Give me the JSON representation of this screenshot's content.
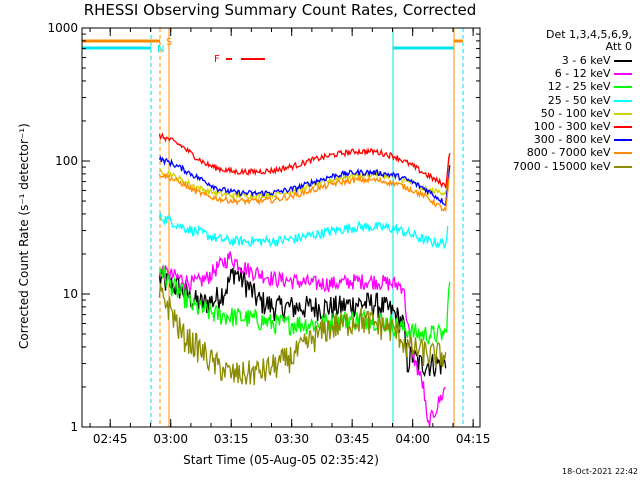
{
  "chart_data": {
    "type": "line",
    "title": "RHESSI Observing Summary Count Rates, Corrected",
    "xlabel": "Start Time (05-Aug-05 02:35:42)",
    "ylabel": "Corrected Count Rate (s⁻¹ detector⁻¹)",
    "yscale": "log",
    "ylim": [
      1,
      1000
    ],
    "xlim_minutes": [
      2.3,
      101
    ],
    "xticks": [
      {
        "m": 9.3,
        "label": "02:45"
      },
      {
        "m": 24.3,
        "label": "03:00"
      },
      {
        "m": 39.3,
        "label": "03:15"
      },
      {
        "m": 54.3,
        "label": "03:30"
      },
      {
        "m": 69.3,
        "label": "03:45"
      },
      {
        "m": 84.3,
        "label": "04:00"
      },
      {
        "m": 99.3,
        "label": "04:15"
      }
    ],
    "yticks": [
      {
        "v": 1,
        "label": "1"
      },
      {
        "v": 10,
        "label": "10"
      },
      {
        "v": 100,
        "label": "100"
      },
      {
        "v": 1000,
        "label": "1000"
      }
    ],
    "legend_header": [
      "Det 1,3,4,5,6,9,",
      "Att 0"
    ],
    "legend_position": "right",
    "timestamp": "18-Oct-2021 22:42",
    "series": [
      {
        "name": "3 - 6 keV",
        "color": "#000000",
        "x": [
          21.5,
          24,
          27,
          30,
          32,
          35,
          38,
          40,
          43,
          46,
          50,
          55,
          60,
          66,
          70,
          75,
          79,
          82,
          83,
          84,
          86,
          88,
          90,
          92.5
        ],
        "y": [
          13,
          12,
          11,
          9,
          8.5,
          9,
          11,
          15,
          12,
          9,
          8,
          8,
          8,
          8,
          8.5,
          8.5,
          7.5,
          6,
          3,
          3.5,
          3,
          3,
          3,
          3
        ]
      },
      {
        "name": "6 - 12 keV",
        "color": "#ff00ff",
        "x": [
          21.5,
          24,
          27,
          30,
          33,
          36,
          39,
          41,
          44,
          47,
          50,
          55,
          60,
          65,
          70,
          75,
          79,
          82,
          83,
          84,
          85,
          86,
          87,
          88,
          92.5
        ],
        "y": [
          15,
          14,
          13,
          12,
          13,
          16,
          19,
          17,
          15,
          14,
          13,
          12.5,
          12,
          12,
          12.5,
          12.5,
          12,
          11.5,
          6,
          4,
          3,
          2.5,
          2,
          1,
          2
        ]
      },
      {
        "name": "12 - 25 keV",
        "color": "#00ff00",
        "x": [
          21.5,
          24,
          27,
          30,
          33,
          36,
          40,
          45,
          50,
          55,
          60,
          65,
          70,
          75,
          79,
          82,
          86,
          90,
          92.5,
          93.5
        ],
        "y": [
          16,
          12,
          10,
          8,
          7.5,
          7,
          6.8,
          6.5,
          6,
          6,
          6,
          6.3,
          6.5,
          6.5,
          6,
          5.5,
          5,
          5,
          5,
          12
        ]
      },
      {
        "name": "25 - 50 keV",
        "color": "#00ffff",
        "x": [
          21.5,
          24,
          27,
          30,
          33,
          36,
          40,
          45,
          50,
          55,
          60,
          65,
          70,
          75,
          80,
          84,
          88,
          92.5,
          93
        ],
        "y": [
          38,
          36,
          32,
          30,
          28,
          26,
          25,
          25,
          25,
          26,
          28,
          30,
          32,
          32,
          31,
          28,
          25,
          24,
          30
        ]
      },
      {
        "name": "50 - 100 keV",
        "color": "#d2d200",
        "x": [
          21.5,
          24,
          27,
          30,
          33,
          36,
          40,
          45,
          50,
          55,
          60,
          65,
          70,
          75,
          80,
          84,
          88,
          92.5,
          93.5
        ],
        "y": [
          85,
          80,
          72,
          65,
          60,
          57,
          55,
          55,
          56,
          60,
          66,
          73,
          78,
          80,
          76,
          68,
          60,
          58,
          110
        ]
      },
      {
        "name": "100 - 300 keV",
        "color": "#ff0000",
        "x": [
          21.5,
          24,
          27,
          30,
          33,
          36,
          40,
          45,
          50,
          55,
          60,
          65,
          70,
          75,
          80,
          84,
          88,
          92.5,
          93.5
        ],
        "y": [
          155,
          145,
          130,
          110,
          95,
          88,
          83,
          83,
          85,
          92,
          103,
          112,
          118,
          118,
          108,
          93,
          78,
          65,
          120
        ]
      },
      {
        "name": "300 - 800 keV",
        "color": "#0000ff",
        "x": [
          21.5,
          24,
          27,
          30,
          33,
          36,
          40,
          45,
          50,
          55,
          60,
          65,
          70,
          75,
          80,
          84,
          88,
          92.5,
          93.5
        ],
        "y": [
          103,
          98,
          88,
          78,
          70,
          62,
          58,
          57,
          58,
          62,
          70,
          78,
          82,
          82,
          78,
          70,
          60,
          48,
          90
        ]
      },
      {
        "name": "800 - 7000 keV",
        "color": "#ff8c00",
        "x": [
          21.5,
          24,
          27,
          30,
          33,
          36,
          40,
          45,
          50,
          55,
          60,
          65,
          70,
          75,
          80,
          84,
          88,
          92.5,
          93.5
        ],
        "y": [
          80,
          75,
          68,
          60,
          55,
          52,
          50,
          50,
          51,
          55,
          61,
          68,
          72,
          72,
          68,
          61,
          53,
          42,
          80
        ]
      },
      {
        "name": "7000 - 15000 keV",
        "color": "#8b8b00",
        "x": [
          21.5,
          23,
          25,
          27,
          29,
          31,
          33,
          35,
          37,
          39,
          42,
          45,
          48,
          51,
          55,
          59,
          63,
          67,
          71,
          75,
          79,
          81,
          83,
          86,
          89,
          92.5
        ],
        "y": [
          10,
          9,
          7,
          5,
          4.5,
          4,
          3.5,
          3,
          2.8,
          2.5,
          2.5,
          2.6,
          2.7,
          3,
          3.5,
          4.5,
          5.5,
          6,
          6.5,
          6,
          5.5,
          5,
          4,
          3.8,
          3.5,
          3.5
        ]
      }
    ],
    "markers": [
      {
        "label": "S",
        "color": "#ff8c00"
      },
      {
        "label": "N",
        "color": "#00e5ee"
      },
      {
        "label": "F",
        "color": "#ff0000"
      }
    ]
  }
}
